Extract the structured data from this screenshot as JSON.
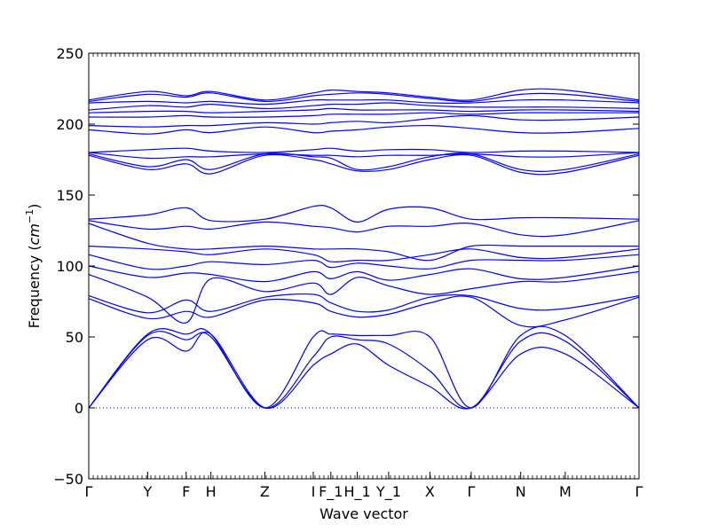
{
  "chart_data": {
    "type": "line",
    "title": "",
    "xlabel": "Wave vector",
    "ylabel": "Frequency (cm⁻¹)",
    "ylabel_prefix": "Frequency (",
    "ylabel_unit": "cm",
    "ylabel_exp": "−1",
    "ylabel_suffix": ")",
    "ylim": [
      -50,
      250
    ],
    "yticks": [
      -50,
      0,
      50,
      100,
      150,
      200,
      250
    ],
    "ytick_labels": [
      "−50",
      "0",
      "50",
      "100",
      "150",
      "200",
      "250"
    ],
    "x_path_positions": [
      0,
      0.107,
      0.177,
      0.222,
      0.32,
      0.408,
      0.44,
      0.488,
      0.545,
      0.62,
      0.695,
      0.785,
      0.866,
      1.0
    ],
    "x_path_labels": [
      "Γ",
      "Y",
      "F",
      "H",
      "Z",
      "I",
      "F_1",
      "H_1",
      "Y_1",
      "X",
      "Γ",
      "N",
      "M",
      "Γ"
    ],
    "zero_line": true,
    "line_color": "#0000ff",
    "zero_line_color": "#0000ff",
    "series": [
      {
        "x": [
          0,
          0.107,
          0.177,
          0.222,
          0.32,
          0.408,
          0.44,
          0.488,
          0.545,
          0.62,
          0.695,
          0.785,
          0.866,
          1.0
        ],
        "values": [
          0,
          48,
          40,
          52,
          0,
          30,
          38,
          45,
          30,
          15,
          0,
          38,
          38,
          0
        ]
      },
      {
        "x": [
          0,
          0.107,
          0.177,
          0.222,
          0.32,
          0.408,
          0.44,
          0.488,
          0.545,
          0.62,
          0.695,
          0.785,
          0.866,
          1.0
        ],
        "values": [
          0,
          51,
          48,
          50,
          0,
          36,
          50,
          48,
          45,
          26,
          0,
          47,
          47,
          0
        ]
      },
      {
        "x": [
          0,
          0.107,
          0.177,
          0.222,
          0.32,
          0.408,
          0.44,
          0.488,
          0.545,
          0.62,
          0.695,
          0.785,
          0.866,
          1.0
        ],
        "values": [
          0,
          52,
          52,
          52,
          0,
          50,
          52,
          51,
          51,
          50,
          0,
          51,
          51,
          0
        ]
      },
      {
        "x": [
          0,
          0.107,
          0.177,
          0.222,
          0.32,
          0.408,
          0.44,
          0.488,
          0.545,
          0.62,
          0.695,
          0.785,
          0.866,
          1.0
        ],
        "values": [
          77,
          63,
          68,
          64,
          76,
          74,
          68,
          64,
          66,
          74,
          78,
          58,
          62,
          78
        ]
      },
      {
        "x": [
          0,
          0.107,
          0.177,
          0.222,
          0.32,
          0.408,
          0.44,
          0.488,
          0.545,
          0.62,
          0.695,
          0.785,
          0.866,
          1.0
        ],
        "values": [
          79,
          67,
          76,
          68,
          78,
          80,
          74,
          68,
          69,
          78,
          79,
          70,
          70,
          79
        ]
      },
      {
        "x": [
          0,
          0.107,
          0.177,
          0.222,
          0.32,
          0.408,
          0.44,
          0.488,
          0.545,
          0.62,
          0.695,
          0.785,
          0.866,
          1.0
        ],
        "values": [
          94,
          78,
          60,
          91,
          82,
          88,
          80,
          92,
          86,
          80,
          84,
          89,
          89,
          96
        ]
      },
      {
        "x": [
          0,
          0.107,
          0.177,
          0.222,
          0.32,
          0.408,
          0.44,
          0.488,
          0.545,
          0.62,
          0.695,
          0.785,
          0.866,
          1.0
        ],
        "values": [
          100,
          92,
          95,
          94,
          89,
          96,
          91,
          96,
          90,
          94,
          98,
          91,
          92,
          100
        ]
      },
      {
        "x": [
          0,
          0.107,
          0.177,
          0.222,
          0.32,
          0.408,
          0.44,
          0.488,
          0.545,
          0.62,
          0.695,
          0.785,
          0.866,
          1.0
        ],
        "values": [
          108,
          98,
          100,
          103,
          101,
          104,
          99,
          102,
          100,
          98,
          104,
          104,
          104,
          108
        ]
      },
      {
        "x": [
          0,
          0.107,
          0.177,
          0.222,
          0.32,
          0.408,
          0.44,
          0.488,
          0.545,
          0.62,
          0.695,
          0.785,
          0.866,
          1.0
        ],
        "values": [
          114,
          112,
          110,
          108,
          112,
          108,
          103,
          104,
          104,
          108,
          112,
          106,
          106,
          112
        ]
      },
      {
        "x": [
          0,
          0.107,
          0.177,
          0.222,
          0.32,
          0.408,
          0.44,
          0.488,
          0.545,
          0.62,
          0.695,
          0.785,
          0.866,
          1.0
        ],
        "values": [
          130,
          116,
          112,
          112,
          114,
          112,
          112,
          112,
          110,
          104,
          114,
          114,
          114,
          114
        ]
      },
      {
        "x": [
          0,
          0.107,
          0.177,
          0.222,
          0.32,
          0.408,
          0.44,
          0.488,
          0.545,
          0.62,
          0.695,
          0.785,
          0.866,
          1.0
        ],
        "values": [
          132,
          126,
          128,
          126,
          131,
          128,
          127,
          124,
          128,
          128,
          130,
          122,
          122,
          132
        ]
      },
      {
        "x": [
          0,
          0.107,
          0.177,
          0.222,
          0.32,
          0.408,
          0.44,
          0.488,
          0.545,
          0.62,
          0.695,
          0.785,
          0.866,
          1.0
        ],
        "values": [
          133,
          136,
          141,
          132,
          133,
          142,
          141,
          131,
          140,
          141,
          133,
          134,
          134,
          133
        ]
      },
      {
        "x": [
          0,
          0.107,
          0.177,
          0.222,
          0.32,
          0.408,
          0.44,
          0.488,
          0.545,
          0.62,
          0.695,
          0.785,
          0.866,
          1.0
        ],
        "values": [
          178,
          168,
          172,
          165,
          178,
          175,
          172,
          167,
          168,
          175,
          178,
          166,
          166,
          178
        ]
      },
      {
        "x": [
          0,
          0.107,
          0.177,
          0.222,
          0.32,
          0.408,
          0.44,
          0.488,
          0.545,
          0.62,
          0.695,
          0.785,
          0.866,
          1.0
        ],
        "values": [
          179,
          170,
          175,
          168,
          179,
          177,
          176,
          168,
          170,
          177,
          179,
          168,
          168,
          179
        ]
      },
      {
        "x": [
          0,
          0.107,
          0.177,
          0.222,
          0.32,
          0.408,
          0.44,
          0.488,
          0.545,
          0.62,
          0.695,
          0.785,
          0.866,
          1.0
        ],
        "values": [
          180,
          176,
          177,
          177,
          179,
          178,
          178,
          177,
          178,
          178,
          179,
          177,
          177,
          180
        ]
      },
      {
        "x": [
          0,
          0.107,
          0.177,
          0.222,
          0.32,
          0.408,
          0.44,
          0.488,
          0.545,
          0.62,
          0.695,
          0.785,
          0.866,
          1.0
        ],
        "values": [
          180,
          182,
          183,
          181,
          180,
          182,
          183,
          181,
          182,
          182,
          180,
          181,
          181,
          180
        ]
      },
      {
        "x": [
          0,
          0.107,
          0.177,
          0.222,
          0.32,
          0.408,
          0.44,
          0.488,
          0.545,
          0.62,
          0.695,
          0.785,
          0.866,
          1.0
        ],
        "values": [
          196,
          193,
          196,
          194,
          198,
          194,
          195,
          196,
          198,
          199,
          197,
          194,
          194,
          197
        ]
      },
      {
        "x": [
          0,
          0.107,
          0.177,
          0.222,
          0.32,
          0.408,
          0.44,
          0.488,
          0.545,
          0.62,
          0.695,
          0.785,
          0.866,
          1.0
        ],
        "values": [
          199,
          198,
          199,
          199,
          201,
          200,
          201,
          202,
          201,
          204,
          206,
          203,
          203,
          205
        ]
      },
      {
        "x": [
          0,
          0.107,
          0.177,
          0.222,
          0.32,
          0.408,
          0.44,
          0.488,
          0.545,
          0.62,
          0.695,
          0.785,
          0.866,
          1.0
        ],
        "values": [
          205,
          205,
          206,
          205,
          205,
          206,
          207,
          207,
          207,
          208,
          207,
          208,
          208,
          208
        ]
      },
      {
        "x": [
          0,
          0.107,
          0.177,
          0.222,
          0.32,
          0.408,
          0.44,
          0.488,
          0.545,
          0.62,
          0.695,
          0.785,
          0.866,
          1.0
        ],
        "values": [
          208,
          209,
          209,
          208,
          209,
          210,
          211,
          210,
          210,
          210,
          209,
          210,
          210,
          209
        ]
      },
      {
        "x": [
          0,
          0.107,
          0.177,
          0.222,
          0.32,
          0.408,
          0.44,
          0.488,
          0.545,
          0.62,
          0.695,
          0.785,
          0.866,
          1.0
        ],
        "values": [
          210,
          213,
          212,
          214,
          211,
          213,
          214,
          214,
          215,
          213,
          212,
          212,
          212,
          211
        ]
      },
      {
        "x": [
          0,
          0.107,
          0.177,
          0.222,
          0.32,
          0.408,
          0.44,
          0.488,
          0.545,
          0.62,
          0.695,
          0.785,
          0.866,
          1.0
        ],
        "values": [
          215,
          216,
          215,
          216,
          214,
          217,
          217,
          217,
          217,
          215,
          215,
          217,
          217,
          215
        ]
      },
      {
        "x": [
          0,
          0.107,
          0.177,
          0.222,
          0.32,
          0.408,
          0.44,
          0.488,
          0.545,
          0.62,
          0.695,
          0.785,
          0.866,
          1.0
        ],
        "values": [
          216,
          221,
          219,
          222,
          216,
          220,
          221,
          222,
          221,
          218,
          216,
          221,
          221,
          216
        ]
      },
      {
        "x": [
          0,
          0.107,
          0.177,
          0.222,
          0.32,
          0.408,
          0.44,
          0.488,
          0.545,
          0.62,
          0.695,
          0.785,
          0.866,
          1.0
        ],
        "values": [
          217,
          223,
          220,
          223,
          217,
          222,
          224,
          223,
          222,
          219,
          217,
          224,
          224,
          217
        ]
      }
    ]
  }
}
